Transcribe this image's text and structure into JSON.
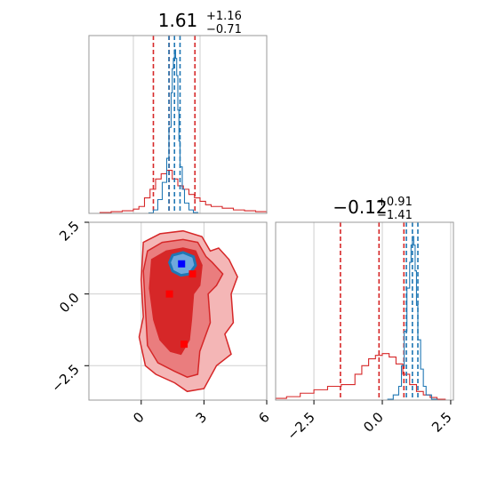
{
  "chart_data": [
    {
      "type": "histogram",
      "panel": "top-left marginal (parameter 1)",
      "title_value": "1.61",
      "title_plus": "+1.16",
      "title_minus": "−0.71",
      "xlim": [
        -2.0,
        6.0
      ],
      "grid": true,
      "series": [
        {
          "color": "#d62728",
          "bin_edges": [
            -2.0,
            -1.5,
            -1.0,
            -0.5,
            0.0,
            0.25,
            0.5,
            0.75,
            1.0,
            1.25,
            1.5,
            1.75,
            2.0,
            2.25,
            2.5,
            2.75,
            3.0,
            3.25,
            3.5,
            4.0,
            4.5,
            5.0,
            5.5,
            6.0
          ],
          "heights": [
            0.0,
            0.005,
            0.01,
            0.015,
            0.025,
            0.04,
            0.09,
            0.14,
            0.2,
            0.23,
            0.25,
            0.2,
            0.16,
            0.14,
            0.11,
            0.09,
            0.07,
            0.05,
            0.04,
            0.03,
            0.02,
            0.015,
            0.01
          ],
          "quantile_lines": [
            0.9,
            1.61,
            2.77
          ]
        },
        {
          "color": "#1f77b4",
          "bin_edges": [
            0.7,
            0.9,
            1.1,
            1.3,
            1.5,
            1.6,
            1.7,
            1.75,
            1.8,
            1.85,
            1.9,
            1.95,
            2.0,
            2.05,
            2.1,
            2.2,
            2.3,
            2.5,
            2.7,
            2.9
          ],
          "heights": [
            0.003,
            0.02,
            0.08,
            0.18,
            0.32,
            0.5,
            0.7,
            0.84,
            0.9,
            0.95,
            0.9,
            0.8,
            0.6,
            0.42,
            0.27,
            0.14,
            0.06,
            0.02,
            0.005
          ],
          "quantile_lines": [
            1.6,
            1.85,
            2.1
          ]
        }
      ]
    },
    {
      "type": "contour",
      "panel": "bottom-left 2D (parameter 1 vs parameter 2)",
      "xlim": [
        -2.5,
        6.0
      ],
      "ylim": [
        -3.7,
        2.5
      ],
      "xticks": [
        "0",
        "3",
        "6"
      ],
      "xtick_values": [
        0,
        3,
        6
      ],
      "yticks": [
        "2.5",
        "0.0",
        "−2.5"
      ],
      "ytick_values": [
        2.5,
        0.0,
        -2.5
      ],
      "grid": true,
      "red_contour_outer": [
        [
          0.1,
          1.8
        ],
        [
          0.9,
          2.1
        ],
        [
          2.0,
          2.2
        ],
        [
          2.9,
          2.0
        ],
        [
          3.3,
          1.5
        ],
        [
          3.7,
          1.6
        ],
        [
          4.2,
          1.2
        ],
        [
          4.6,
          0.6
        ],
        [
          4.3,
          0.0
        ],
        [
          4.4,
          -1.0
        ],
        [
          4.0,
          -1.4
        ],
        [
          4.3,
          -2.1
        ],
        [
          3.6,
          -2.5
        ],
        [
          3.0,
          -3.3
        ],
        [
          2.2,
          -3.4
        ],
        [
          1.6,
          -3.1
        ],
        [
          0.7,
          -2.8
        ],
        [
          0.2,
          -2.5
        ],
        [
          -0.1,
          -1.5
        ],
        [
          0.1,
          -0.8
        ],
        [
          0.0,
          0.5
        ]
      ],
      "red_contour_mid": [
        [
          0.3,
          1.5
        ],
        [
          1.0,
          1.8
        ],
        [
          2.0,
          1.9
        ],
        [
          2.7,
          1.8
        ],
        [
          3.1,
          1.3
        ],
        [
          3.4,
          1.1
        ],
        [
          3.9,
          0.7
        ],
        [
          3.6,
          0.3
        ],
        [
          3.2,
          0.0
        ],
        [
          3.3,
          -1.0
        ],
        [
          2.8,
          -2.0
        ],
        [
          2.7,
          -2.8
        ],
        [
          2.2,
          -2.9
        ],
        [
          1.6,
          -2.7
        ],
        [
          0.8,
          -2.4
        ],
        [
          0.3,
          -1.8
        ],
        [
          0.2,
          -0.5
        ],
        [
          0.1,
          0.8
        ]
      ],
      "red_contour_inner": [
        [
          0.5,
          1.2
        ],
        [
          1.2,
          1.5
        ],
        [
          2.0,
          1.6
        ],
        [
          2.6,
          1.5
        ],
        [
          2.9,
          1.0
        ],
        [
          2.8,
          0.3
        ],
        [
          2.5,
          0.0
        ],
        [
          2.4,
          -0.9
        ],
        [
          2.3,
          -1.6
        ],
        [
          1.9,
          -2.1
        ],
        [
          1.4,
          -2.0
        ],
        [
          0.9,
          -1.6
        ],
        [
          0.6,
          -0.9
        ],
        [
          0.4,
          0.2
        ]
      ],
      "blue_contour": [
        [
          1.5,
          1.35
        ],
        [
          2.0,
          1.45
        ],
        [
          2.5,
          1.3
        ],
        [
          2.6,
          1.0
        ],
        [
          2.3,
          0.7
        ],
        [
          1.9,
          0.65
        ],
        [
          1.5,
          0.8
        ],
        [
          1.35,
          1.1
        ]
      ],
      "red_markers": [
        [
          1.35,
          0.0
        ],
        [
          2.45,
          0.7
        ],
        [
          2.05,
          -1.75
        ]
      ],
      "blue_marker": [
        1.93,
        1.05
      ]
    },
    {
      "type": "histogram",
      "panel": "bottom-right marginal (parameter 2)",
      "title_value": "−0.12",
      "title_plus": "+0.91",
      "title_minus": "−1.41",
      "xlim": [
        -3.9,
        2.6
      ],
      "xticks": [
        "−2.5",
        "0.0",
        "2.5"
      ],
      "xtick_values": [
        -2.5,
        0.0,
        2.5
      ],
      "grid": true,
      "series": [
        {
          "color": "#d62728",
          "bin_edges": [
            -3.9,
            -3.5,
            -3.0,
            -2.5,
            -2.0,
            -1.5,
            -1.0,
            -0.75,
            -0.5,
            -0.25,
            0.0,
            0.25,
            0.5,
            0.75,
            1.0,
            1.25,
            1.5,
            1.75,
            2.0,
            2.3
          ],
          "heights": [
            0.01,
            0.02,
            0.04,
            0.06,
            0.08,
            0.09,
            0.15,
            0.2,
            0.24,
            0.26,
            0.27,
            0.25,
            0.21,
            0.15,
            0.09,
            0.05,
            0.03,
            0.015,
            0.005
          ],
          "quantile_lines": [
            -1.53,
            -0.12,
            0.79
          ]
        },
        {
          "color": "#1f77b4",
          "bin_edges": [
            0.2,
            0.4,
            0.6,
            0.7,
            0.8,
            0.9,
            1.0,
            1.05,
            1.1,
            1.15,
            1.2,
            1.25,
            1.3,
            1.4,
            1.5,
            1.6,
            1.8,
            2.0
          ],
          "heights": [
            0.005,
            0.03,
            0.08,
            0.2,
            0.4,
            0.65,
            0.8,
            0.9,
            0.95,
            0.9,
            0.75,
            0.55,
            0.35,
            0.18,
            0.08,
            0.03,
            0.005
          ],
          "quantile_lines": [
            0.88,
            1.1,
            1.3
          ]
        }
      ]
    }
  ]
}
